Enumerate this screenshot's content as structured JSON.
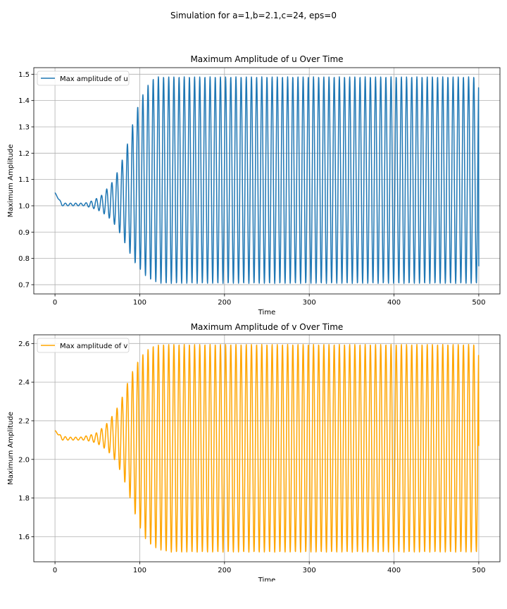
{
  "figure": {
    "suptitle": "Simulation for a=1,b=2.1,c=24, eps=0"
  },
  "chart_data": [
    {
      "type": "line",
      "title": "Maximum Amplitude of u Over Time",
      "xlabel": "Time",
      "ylabel": "Maximum Amplitude",
      "xlim": [
        -25,
        525
      ],
      "ylim": [
        0.665,
        1.525
      ],
      "xticks": [
        0,
        100,
        200,
        300,
        400,
        500
      ],
      "xtick_labels": [
        "0",
        "100",
        "200",
        "300",
        "400",
        "500"
      ],
      "yticks": [
        0.7,
        0.8,
        0.9,
        1.0,
        1.1,
        1.2,
        1.3,
        1.4,
        1.5
      ],
      "ytick_labels": [
        "0.7",
        "0.8",
        "0.9",
        "1.0",
        "1.1",
        "1.2",
        "1.3",
        "1.4",
        "1.5"
      ],
      "grid": true,
      "legend": "upper left",
      "color": "#1f77b4",
      "series": [
        {
          "name": "Max amplitude of u",
          "x": [
            0,
            8,
            10,
            15,
            20,
            25,
            30,
            35,
            40,
            45,
            50,
            55,
            60,
            65,
            70,
            75,
            80,
            85,
            90,
            95,
            100,
            105,
            110,
            115,
            120,
            125,
            130,
            135,
            140,
            145,
            150,
            155,
            160,
            165,
            170,
            175,
            180,
            185,
            190,
            195,
            200,
            205,
            210,
            215,
            220,
            225,
            230,
            235,
            240,
            245,
            250,
            255,
            260,
            265,
            270,
            275,
            280,
            285,
            290,
            295,
            300,
            305,
            310,
            315,
            320,
            325,
            330,
            335,
            340,
            345,
            350,
            355,
            360,
            365,
            370,
            375,
            380,
            385,
            390,
            395,
            400,
            405,
            410,
            415,
            420,
            425,
            430,
            435,
            440,
            445,
            450,
            455,
            460,
            465,
            470,
            475,
            480,
            485,
            490,
            495,
            500
          ],
          "upper": [
            1.05,
            1.01,
            1.01,
            1.01,
            1.01,
            1.01,
            1.01,
            1.01,
            1.015,
            1.02,
            1.03,
            1.04,
            1.06,
            1.08,
            1.1,
            1.14,
            1.18,
            1.23,
            1.29,
            1.35,
            1.4,
            1.43,
            1.46,
            1.48,
            1.49,
            1.49,
            1.49,
            1.49,
            1.49,
            1.49,
            1.49,
            1.49,
            1.49,
            1.49,
            1.49,
            1.49,
            1.49,
            1.49,
            1.49,
            1.49,
            1.49,
            1.49,
            1.49,
            1.49,
            1.49,
            1.49,
            1.49,
            1.49,
            1.49,
            1.49,
            1.49,
            1.49,
            1.49,
            1.49,
            1.49,
            1.49,
            1.49,
            1.49,
            1.49,
            1.49,
            1.49,
            1.49,
            1.49,
            1.49,
            1.49,
            1.49,
            1.49,
            1.49,
            1.49,
            1.49,
            1.49,
            1.49,
            1.49,
            1.49,
            1.49,
            1.49,
            1.49,
            1.49,
            1.49,
            1.49,
            1.49,
            1.49,
            1.49,
            1.49,
            1.49,
            1.49,
            1.49,
            1.49,
            1.49,
            1.49,
            1.49,
            1.49,
            1.49,
            1.49,
            1.49,
            1.49,
            1.49,
            1.49,
            1.49,
            1.49,
            1.49
          ],
          "lower": [
            1.05,
            1.0,
            1.0,
            1.0,
            1.0,
            1.0,
            1.0,
            1.0,
            0.995,
            0.99,
            0.985,
            0.975,
            0.965,
            0.95,
            0.93,
            0.905,
            0.875,
            0.84,
            0.81,
            0.78,
            0.76,
            0.74,
            0.725,
            0.715,
            0.71,
            0.705,
            0.705,
            0.705,
            0.705,
            0.705,
            0.705,
            0.705,
            0.705,
            0.705,
            0.705,
            0.705,
            0.705,
            0.705,
            0.705,
            0.705,
            0.705,
            0.705,
            0.705,
            0.705,
            0.705,
            0.705,
            0.705,
            0.705,
            0.705,
            0.705,
            0.705,
            0.705,
            0.705,
            0.705,
            0.705,
            0.705,
            0.705,
            0.705,
            0.705,
            0.705,
            0.705,
            0.705,
            0.705,
            0.705,
            0.705,
            0.705,
            0.705,
            0.705,
            0.705,
            0.705,
            0.705,
            0.705,
            0.705,
            0.705,
            0.705,
            0.705,
            0.705,
            0.705,
            0.705,
            0.705,
            0.705,
            0.705,
            0.705,
            0.705,
            0.705,
            0.705,
            0.705,
            0.705,
            0.705,
            0.705,
            0.705,
            0.705,
            0.705,
            0.705,
            0.705,
            0.705,
            0.705,
            0.705,
            0.705,
            0.705,
            0.705
          ],
          "period": 6.1,
          "y_end": 0.77
        }
      ]
    },
    {
      "type": "line",
      "title": "Maximum Amplitude of v Over Time",
      "xlabel": "Time",
      "ylabel": "Maximum Amplitude",
      "xlim": [
        -25,
        525
      ],
      "ylim": [
        1.47,
        2.645
      ],
      "xticks": [
        0,
        100,
        200,
        300,
        400,
        500
      ],
      "xtick_labels": [
        "0",
        "100",
        "200",
        "300",
        "400",
        "500"
      ],
      "yticks": [
        1.6,
        1.8,
        2.0,
        2.2,
        2.4,
        2.6
      ],
      "ytick_labels": [
        "1.6",
        "1.8",
        "2.0",
        "2.2",
        "2.4",
        "2.6"
      ],
      "grid": true,
      "legend": "upper left",
      "color": "#ffa500",
      "series": [
        {
          "name": "Max amplitude of v",
          "x": [
            0,
            8,
            10,
            15,
            20,
            25,
            30,
            35,
            40,
            45,
            50,
            55,
            60,
            65,
            70,
            75,
            80,
            85,
            90,
            95,
            100,
            105,
            110,
            115,
            120,
            125,
            130,
            135,
            140,
            145,
            150,
            155,
            160,
            165,
            170,
            175,
            180,
            185,
            190,
            195,
            200,
            205,
            210,
            215,
            220,
            225,
            230,
            235,
            240,
            245,
            250,
            255,
            260,
            265,
            270,
            275,
            280,
            285,
            290,
            295,
            300,
            305,
            310,
            315,
            320,
            325,
            330,
            335,
            340,
            345,
            350,
            355,
            360,
            365,
            370,
            375,
            380,
            385,
            390,
            395,
            400,
            405,
            410,
            415,
            420,
            425,
            430,
            435,
            440,
            445,
            450,
            455,
            460,
            465,
            470,
            475,
            480,
            485,
            490,
            495,
            500
          ],
          "upper": [
            2.15,
            2.12,
            2.12,
            2.115,
            2.115,
            2.115,
            2.115,
            2.12,
            2.125,
            2.13,
            2.14,
            2.16,
            2.18,
            2.21,
            2.24,
            2.28,
            2.33,
            2.39,
            2.44,
            2.49,
            2.52,
            2.55,
            2.57,
            2.585,
            2.59,
            2.595,
            2.595,
            2.595,
            2.595,
            2.595,
            2.595,
            2.595,
            2.595,
            2.595,
            2.595,
            2.595,
            2.595,
            2.595,
            2.595,
            2.595,
            2.595,
            2.595,
            2.595,
            2.595,
            2.595,
            2.595,
            2.595,
            2.595,
            2.595,
            2.595,
            2.595,
            2.595,
            2.595,
            2.595,
            2.595,
            2.595,
            2.595,
            2.595,
            2.595,
            2.595,
            2.595,
            2.595,
            2.595,
            2.595,
            2.595,
            2.595,
            2.595,
            2.595,
            2.595,
            2.595,
            2.595,
            2.595,
            2.595,
            2.595,
            2.595,
            2.595,
            2.595,
            2.595,
            2.595,
            2.595,
            2.595,
            2.595,
            2.595,
            2.595,
            2.595,
            2.595,
            2.595,
            2.595,
            2.595,
            2.595,
            2.595,
            2.595,
            2.595,
            2.595,
            2.595,
            2.595,
            2.595,
            2.595,
            2.595,
            2.595,
            2.595
          ],
          "lower": [
            2.15,
            2.1,
            2.1,
            2.1,
            2.1,
            2.1,
            2.1,
            2.1,
            2.095,
            2.09,
            2.08,
            2.07,
            2.05,
            2.03,
            2.0,
            1.96,
            1.91,
            1.85,
            1.78,
            1.71,
            1.65,
            1.6,
            1.57,
            1.55,
            1.54,
            1.53,
            1.525,
            1.52,
            1.52,
            1.52,
            1.52,
            1.52,
            1.52,
            1.52,
            1.52,
            1.52,
            1.52,
            1.52,
            1.52,
            1.52,
            1.52,
            1.52,
            1.52,
            1.52,
            1.52,
            1.52,
            1.52,
            1.52,
            1.52,
            1.52,
            1.52,
            1.52,
            1.52,
            1.52,
            1.52,
            1.52,
            1.52,
            1.52,
            1.52,
            1.52,
            1.52,
            1.52,
            1.52,
            1.52,
            1.52,
            1.52,
            1.52,
            1.52,
            1.52,
            1.52,
            1.52,
            1.52,
            1.52,
            1.52,
            1.52,
            1.52,
            1.52,
            1.52,
            1.52,
            1.52,
            1.52,
            1.52,
            1.52,
            1.52,
            1.52,
            1.52,
            1.52,
            1.52,
            1.52,
            1.52,
            1.52,
            1.52,
            1.52,
            1.52,
            1.52,
            1.52,
            1.52,
            1.52,
            1.52,
            1.52,
            1.52
          ],
          "period": 6.1,
          "y_end": 2.07
        }
      ]
    }
  ]
}
